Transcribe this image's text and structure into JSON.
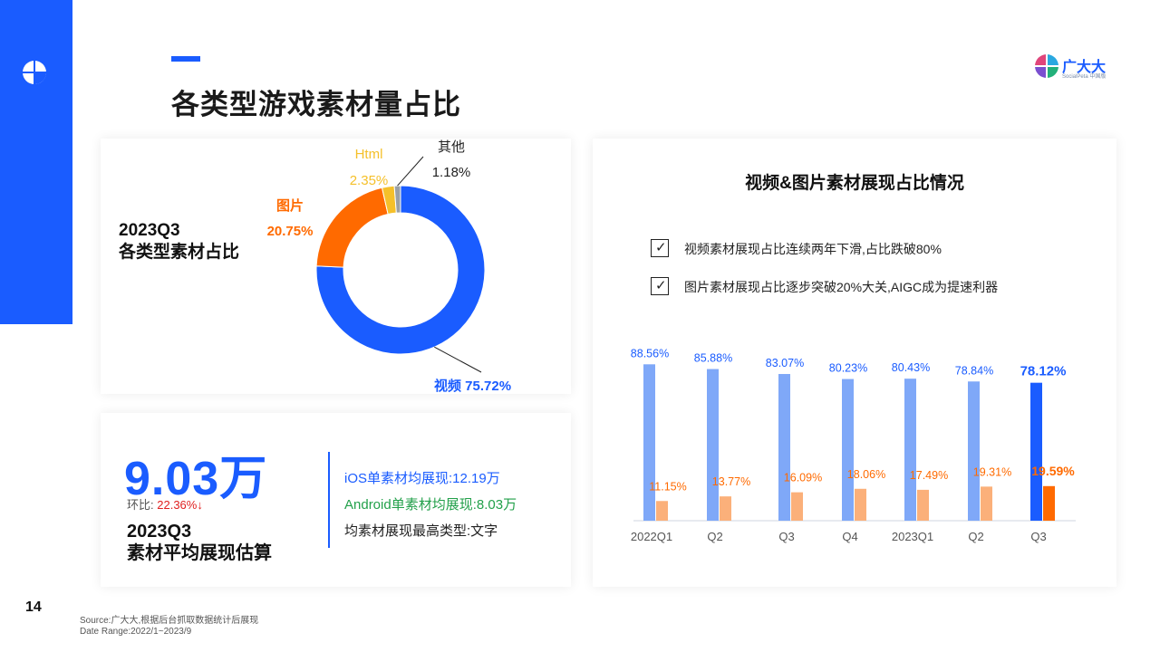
{
  "page": {
    "title": "各类型游戏素材量占比",
    "number": "14"
  },
  "brand": {
    "name": "广大大",
    "sub": "SocialPeta 中国版"
  },
  "colors": {
    "accent": "#1a5cff",
    "video": "#1a5cff",
    "video_light": "#7fa8f8",
    "image": "#ff6a00",
    "image_light": "#fbb07a",
    "html": "#f5c02a",
    "other": "#9aa0a6"
  },
  "pie_card": {
    "heading_line1": "2023Q3",
    "heading_line2": "各类型素材占比"
  },
  "kpi": {
    "value": "9.03万",
    "qoq_label": "环比:",
    "qoq_value": "22.36%↓",
    "title_line1": "2023Q3",
    "title_line2": "素材平均展现估算",
    "ios": "iOS单素材均展现:12.19万",
    "android": "Android单素材均展现:8.03万",
    "top_type": "均素材展现最高类型:文字"
  },
  "bar_card": {
    "title": "视频&图片素材展现占比情况",
    "bullets": [
      "视频素材展现占比连续两年下滑,占比跌破80%",
      "图片素材展现占比逐步突破20%大关,AIGC成为提速利器"
    ]
  },
  "chart_data": [
    {
      "type": "pie",
      "donut": true,
      "slices": [
        {
          "label": "视频",
          "value": 75.72,
          "value_label": "75.72%",
          "color": "#1a5cff"
        },
        {
          "label": "图片",
          "value": 20.75,
          "value_label": "20.75%",
          "color": "#ff6a00"
        },
        {
          "label": "Html",
          "value": 2.35,
          "value_label": "2.35%",
          "color": "#f5c02a"
        },
        {
          "label": "其他",
          "value": 1.18,
          "value_label": "1.18%",
          "color": "#9aa0a6"
        }
      ]
    },
    {
      "type": "bar",
      "categories": [
        "2022Q1",
        "Q2",
        "Q3",
        "Q4",
        "2023Q1",
        "Q2",
        "Q3"
      ],
      "series": [
        {
          "name": "视频",
          "values": [
            88.56,
            85.88,
            83.07,
            80.23,
            80.43,
            78.84,
            78.12
          ],
          "labels": [
            "88.56%",
            "85.88%",
            "83.07%",
            "80.23%",
            "80.43%",
            "78.84%",
            "78.12%"
          ]
        },
        {
          "name": "图片",
          "values": [
            11.15,
            13.77,
            16.09,
            18.06,
            17.49,
            19.31,
            19.59
          ],
          "labels": [
            "11.15%",
            "13.77%",
            "16.09%",
            "18.06%",
            "17.49%",
            "19.31%",
            "19.59%"
          ]
        }
      ],
      "highlight_index": 6,
      "ylim": [
        0,
        100
      ],
      "grid": false
    }
  ],
  "footer": {
    "source": "Source:广大大,根据后台抓取数据统计后展现",
    "range": "Date Range:2022/1~2023/9"
  }
}
